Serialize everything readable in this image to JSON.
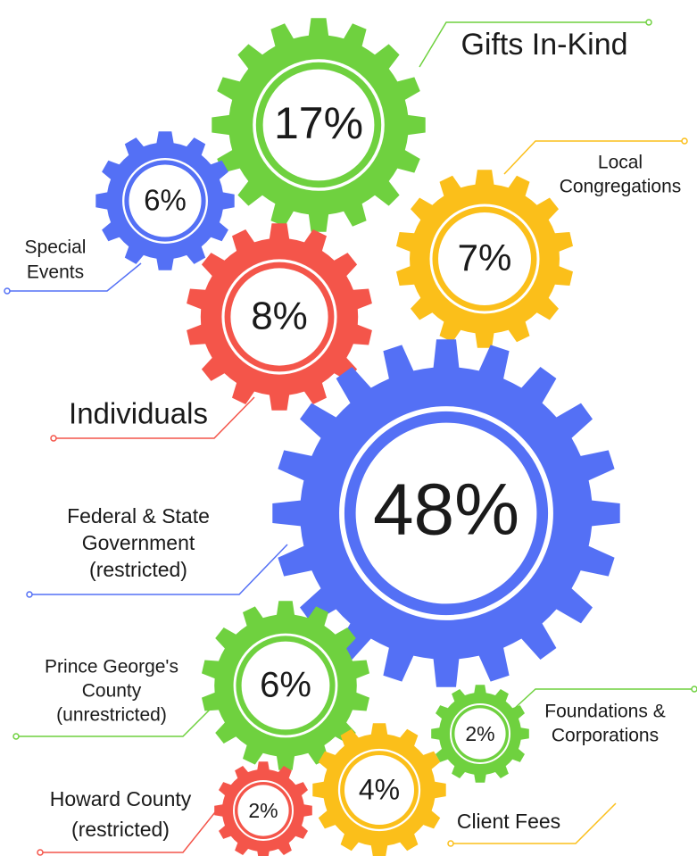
{
  "gears": [
    {
      "label": [
        "Gifts In-Kind"
      ],
      "value": "17%"
    },
    {
      "label": [
        "Special",
        "Events"
      ],
      "value": "6%"
    },
    {
      "label": [
        "Local",
        "Congregations"
      ],
      "value": "7%"
    },
    {
      "label": [
        "Individuals"
      ],
      "value": "8%"
    },
    {
      "label": [
        "Federal & State",
        "Government",
        "(restricted)"
      ],
      "value": "48%"
    },
    {
      "label": [
        "Prince George's",
        "County",
        "(unrestricted)"
      ],
      "value": "6%"
    },
    {
      "label": [
        "Foundations &",
        "Corporations"
      ],
      "value": "2%"
    },
    {
      "label": [
        "Client Fees"
      ],
      "value": "4%"
    },
    {
      "label": [
        "Howard County",
        "(restricted)"
      ],
      "value": "2%"
    }
  ]
}
